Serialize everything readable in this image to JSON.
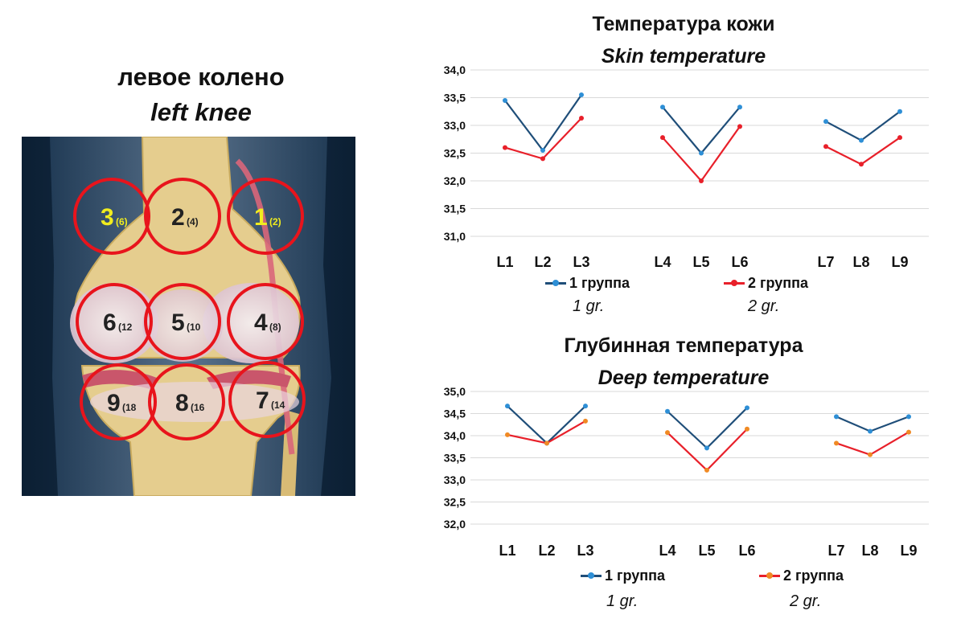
{
  "knee": {
    "title_ru": "левое колено",
    "title_en": "left knee",
    "zones": [
      {
        "num": "3",
        "sub": "(6)",
        "color": "#f0ec1f"
      },
      {
        "num": "2",
        "sub": "(4)",
        "color": "#222222"
      },
      {
        "num": "1",
        "sub": "(2)",
        "color": "#f0ec1f"
      },
      {
        "num": "6",
        "sub": "(12",
        "color": "#222222"
      },
      {
        "num": "5",
        "sub": "(10",
        "color": "#222222"
      },
      {
        "num": "4",
        "sub": "(8)",
        "color": "#222222"
      },
      {
        "num": "9",
        "sub": "(18",
        "color": "#222222"
      },
      {
        "num": "8",
        "sub": "(16",
        "color": "#222222"
      },
      {
        "num": "7",
        "sub": "(14",
        "color": "#222222"
      }
    ],
    "circle_color": "#e8141c"
  },
  "chart_data": [
    {
      "type": "line",
      "title": "Температура кожи",
      "subtitle": "Skin temperature",
      "categories": [
        "L1",
        "L2",
        "L3",
        "L4",
        "L5",
        "L6",
        "L7",
        "L8",
        "L9"
      ],
      "ylim": [
        31.0,
        34.0
      ],
      "yticks": [
        "31,0",
        "31,5",
        "32,0",
        "32,5",
        "33,0",
        "33,5",
        "34,0"
      ],
      "grid": true,
      "series": [
        {
          "name": "1 группа",
          "label_en": "1 gr.",
          "color": "#1f4e79",
          "marker_color": "#2e8fd6",
          "values": [
            33.45,
            32.55,
            33.55,
            33.33,
            32.5,
            33.33,
            33.07,
            32.73,
            33.25
          ]
        },
        {
          "name": "2 группа",
          "label_en": "2 gr.",
          "color": "#e8202a",
          "marker_color": "#e8202a",
          "values": [
            32.6,
            32.4,
            33.13,
            32.78,
            32.0,
            32.98,
            32.62,
            32.3,
            32.78
          ]
        }
      ]
    },
    {
      "type": "line",
      "title": "Глубинная температура",
      "subtitle": "Deep temperature",
      "categories": [
        "L1",
        "L2",
        "L3",
        "L4",
        "L5",
        "L6",
        "L7",
        "L8",
        "L9"
      ],
      "ylim": [
        32.0,
        35.0
      ],
      "yticks": [
        "32,0",
        "32,5",
        "33,0",
        "33,5",
        "34,0",
        "34,5",
        "35,0"
      ],
      "grid": true,
      "series": [
        {
          "name": "1 группа",
          "label_en": "1 gr.",
          "color": "#1f4e79",
          "marker_color": "#2e8fd6",
          "values": [
            34.67,
            33.83,
            34.67,
            34.55,
            33.72,
            34.63,
            34.43,
            34.1,
            34.43
          ]
        },
        {
          "name": "2 группа",
          "label_en": "2 gr.",
          "color": "#e8202a",
          "marker_color": "#f08a24",
          "values": [
            34.02,
            33.83,
            34.33,
            34.07,
            33.22,
            34.15,
            33.83,
            33.57,
            34.08
          ]
        }
      ]
    }
  ]
}
